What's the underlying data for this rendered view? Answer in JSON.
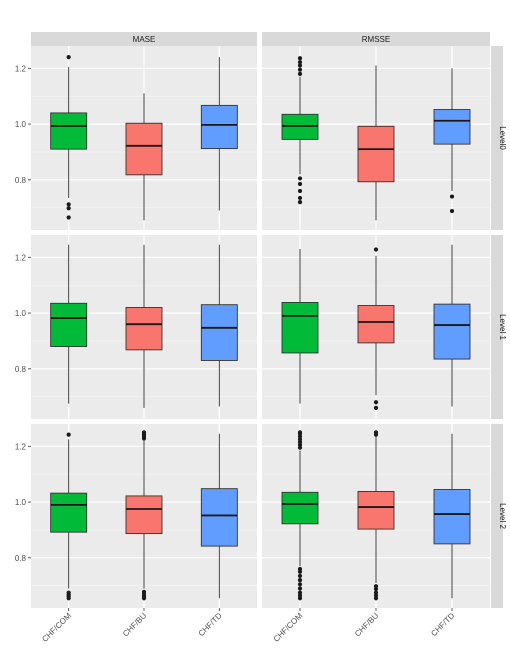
{
  "chart_data": {
    "type": "boxplot",
    "facet_columns": [
      "MASE",
      "RMSSE"
    ],
    "facet_rows": [
      "Level0",
      "Level 1",
      "Level 2"
    ],
    "categories": [
      "CHF/COM",
      "CHF/BU",
      "CHF/TD"
    ],
    "category_colors": [
      "#00BA38",
      "#F8766D",
      "#619CFF"
    ],
    "y_ticks": [
      0.8,
      1.0,
      1.2
    ],
    "y_tick_labels": [
      "0.8",
      "1.0",
      "1.2"
    ],
    "ylim": [
      0.62,
      1.28
    ],
    "grid": true,
    "legend": "none",
    "panels": [
      {
        "row": "Level0",
        "col": "MASE",
        "boxes": [
          {
            "category": "CHF/COM",
            "whisker_low": 0.735,
            "q1": 0.91,
            "median": 0.993,
            "q3": 1.04,
            "whisker_high": 1.205,
            "outliers": [
              0.665,
              0.698,
              0.712,
              1.24
            ]
          },
          {
            "category": "CHF/BU",
            "whisker_low": 0.655,
            "q1": 0.818,
            "median": 0.922,
            "q3": 1.003,
            "whisker_high": 1.11,
            "outliers": []
          },
          {
            "category": "CHF/TD",
            "whisker_low": 0.69,
            "q1": 0.912,
            "median": 0.997,
            "q3": 1.067,
            "whisker_high": 1.24,
            "outliers": []
          }
        ]
      },
      {
        "row": "Level0",
        "col": "RMSSE",
        "boxes": [
          {
            "category": "CHF/COM",
            "whisker_low": 0.82,
            "q1": 0.945,
            "median": 0.993,
            "q3": 1.035,
            "whisker_high": 1.17,
            "outliers": [
              0.72,
              0.735,
              0.76,
              0.785,
              0.805,
              1.18,
              1.195,
              1.21,
              1.222,
              1.236
            ]
          },
          {
            "category": "CHF/BU",
            "whisker_low": 0.655,
            "q1": 0.793,
            "median": 0.91,
            "q3": 0.992,
            "whisker_high": 1.21,
            "outliers": []
          },
          {
            "category": "CHF/TD",
            "whisker_low": 0.76,
            "q1": 0.928,
            "median": 1.012,
            "q3": 1.052,
            "whisker_high": 1.2,
            "outliers": [
              0.688,
              0.74
            ]
          }
        ]
      },
      {
        "row": "Level 1",
        "col": "MASE",
        "boxes": [
          {
            "category": "CHF/COM",
            "whisker_low": 0.675,
            "q1": 0.88,
            "median": 0.982,
            "q3": 1.035,
            "whisker_high": 1.245,
            "outliers": []
          },
          {
            "category": "CHF/BU",
            "whisker_low": 0.66,
            "q1": 0.868,
            "median": 0.96,
            "q3": 1.02,
            "whisker_high": 1.245,
            "outliers": []
          },
          {
            "category": "CHF/TD",
            "whisker_low": 0.665,
            "q1": 0.83,
            "median": 0.947,
            "q3": 1.03,
            "whisker_high": 1.245,
            "outliers": []
          }
        ]
      },
      {
        "row": "Level 1",
        "col": "RMSSE",
        "boxes": [
          {
            "category": "CHF/COM",
            "whisker_low": 0.675,
            "q1": 0.857,
            "median": 0.99,
            "q3": 1.038,
            "whisker_high": 1.23,
            "outliers": []
          },
          {
            "category": "CHF/BU",
            "whisker_low": 0.705,
            "q1": 0.893,
            "median": 0.968,
            "q3": 1.027,
            "whisker_high": 1.205,
            "outliers": [
              0.66,
              0.68,
              1.228
            ]
          },
          {
            "category": "CHF/TD",
            "whisker_low": 0.665,
            "q1": 0.835,
            "median": 0.957,
            "q3": 1.032,
            "whisker_high": 1.245,
            "outliers": []
          }
        ]
      },
      {
        "row": "Level 2",
        "col": "MASE",
        "boxes": [
          {
            "category": "CHF/COM",
            "whisker_low": 0.69,
            "q1": 0.892,
            "median": 0.99,
            "q3": 1.032,
            "whisker_high": 1.225,
            "outliers": [
              0.655,
              0.662,
              0.668,
              0.675,
              1.242
            ]
          },
          {
            "category": "CHF/BU",
            "whisker_low": 0.69,
            "q1": 0.887,
            "median": 0.975,
            "q3": 1.022,
            "whisker_high": 1.22,
            "outliers": [
              0.655,
              0.662,
              0.67,
              0.678,
              1.228,
              1.235,
              1.242,
              1.25
            ]
          },
          {
            "category": "CHF/TD",
            "whisker_low": 0.655,
            "q1": 0.842,
            "median": 0.952,
            "q3": 1.048,
            "whisker_high": 1.245,
            "outliers": []
          }
        ]
      },
      {
        "row": "Level 2",
        "col": "RMSSE",
        "boxes": [
          {
            "category": "CHF/COM",
            "whisker_low": 0.77,
            "q1": 0.922,
            "median": 0.993,
            "q3": 1.035,
            "whisker_high": 1.185,
            "outliers": [
              0.655,
              0.665,
              0.675,
              0.69,
              0.705,
              0.72,
              0.735,
              0.75,
              0.76,
              1.195,
              1.205,
              1.215,
              1.225,
              1.235,
              1.245,
              1.25
            ]
          },
          {
            "category": "CHF/BU",
            "whisker_low": 0.71,
            "q1": 0.903,
            "median": 0.982,
            "q3": 1.038,
            "whisker_high": 1.235,
            "outliers": [
              0.655,
              0.665,
              0.675,
              0.688,
              0.698,
              1.242,
              1.25
            ]
          },
          {
            "category": "CHF/TD",
            "whisker_low": 0.655,
            "q1": 0.85,
            "median": 0.957,
            "q3": 1.045,
            "whisker_high": 1.245,
            "outliers": []
          }
        ]
      }
    ]
  }
}
